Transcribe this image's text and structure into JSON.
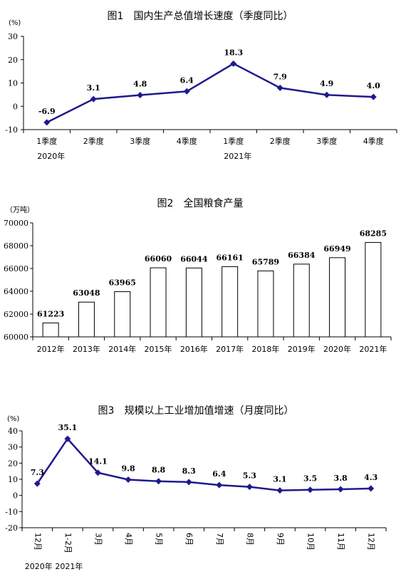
{
  "chart_data": [
    {
      "type": "line",
      "title": "图1　国内生产总值增长速度（季度同比）",
      "unit": "(%)",
      "categories": [
        "1季度",
        "2季度",
        "3季度",
        "4季度",
        "1季度",
        "2季度",
        "3季度",
        "4季度"
      ],
      "groups": [
        {
          "label": "2020年",
          "start": 0
        },
        {
          "label": "2021年",
          "start": 4
        }
      ],
      "values": [
        -6.9,
        3.1,
        4.8,
        6.4,
        18.3,
        7.9,
        4.9,
        4.0
      ],
      "data_labels": [
        "-6.9",
        "3.1",
        "4.8",
        "6.4",
        "18.3",
        "7.9",
        "4.9",
        "4.0"
      ],
      "ylim": [
        -10,
        30
      ],
      "yticks": [
        -10,
        0,
        10,
        20,
        30
      ],
      "color": "#1f1a8c"
    },
    {
      "type": "bar",
      "title": "图2　全国粮食产量",
      "unit": "（万吨）",
      "categories": [
        "2012年",
        "2013年",
        "2014年",
        "2015年",
        "2016年",
        "2017年",
        "2018年",
        "2019年",
        "2020年",
        "2021年"
      ],
      "values": [
        61223,
        63048,
        63965,
        66060,
        66044,
        66161,
        65789,
        66384,
        66949,
        68285
      ],
      "data_labels": [
        "61223",
        "63048",
        "63965",
        "66060",
        "66044",
        "66161",
        "65789",
        "66384",
        "66949",
        "68285"
      ],
      "ylim": [
        60000,
        70000
      ],
      "yticks": [
        60000,
        62000,
        64000,
        66000,
        68000,
        70000
      ]
    },
    {
      "type": "line",
      "title": "图3　规模以上工业增加值增速（月度同比）",
      "unit": "(%)",
      "categories": [
        "12月",
        "1-2月",
        "3月",
        "4月",
        "5月",
        "6月",
        "7月",
        "8月",
        "9月",
        "10月",
        "11月",
        "12月"
      ],
      "groups": [
        {
          "label": "2020年",
          "start": 0
        },
        {
          "label": "2021年",
          "start": 1
        }
      ],
      "values": [
        7.3,
        35.1,
        14.1,
        9.8,
        8.8,
        8.3,
        6.4,
        5.3,
        3.1,
        3.5,
        3.8,
        4.3
      ],
      "data_labels": [
        "7.3",
        "35.1",
        "14.1",
        "9.8",
        "8.8",
        "8.3",
        "6.4",
        "5.3",
        "3.1",
        "3.5",
        "3.8",
        "4.3"
      ],
      "ylim": [
        -20,
        40
      ],
      "yticks": [
        -20,
        -10,
        0,
        10,
        20,
        30,
        40
      ],
      "color": "#1f1a8c"
    }
  ]
}
